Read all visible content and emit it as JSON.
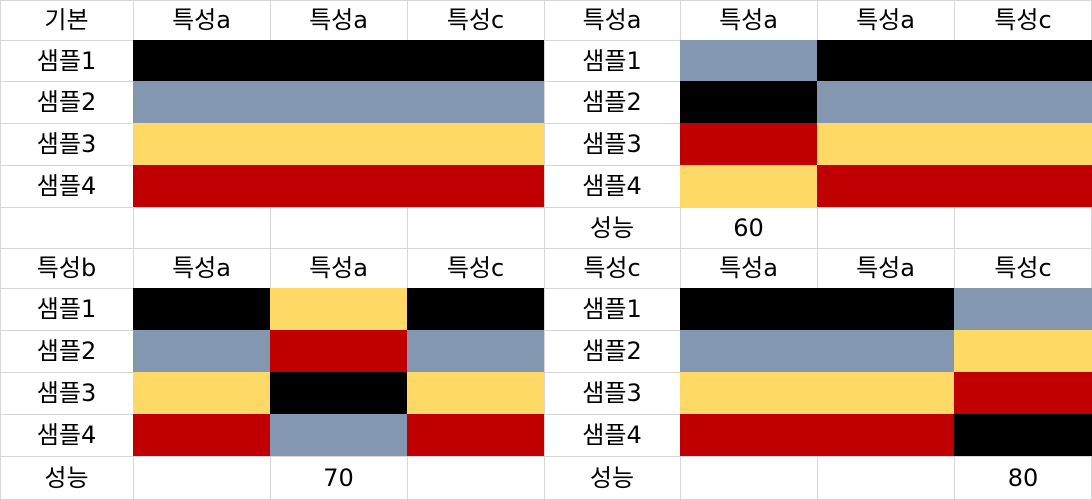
{
  "colors": {
    "black": "#000000",
    "gray": "#8497b0",
    "yellow": "#ffd966",
    "red": "#c00000"
  },
  "tables": [
    {
      "id": "base",
      "title": "기본",
      "headers": [
        "특성a",
        "특성a",
        "특성c"
      ],
      "rows": [
        {
          "label": "샘플1",
          "colors": [
            "black",
            "black",
            "black"
          ]
        },
        {
          "label": "샘플2",
          "colors": [
            "gray",
            "gray",
            "gray"
          ]
        },
        {
          "label": "샘플3",
          "colors": [
            "yellow",
            "yellow",
            "yellow"
          ]
        },
        {
          "label": "샘플4",
          "colors": [
            "red",
            "red",
            "red"
          ]
        }
      ],
      "performance_label": "",
      "performance": [
        "",
        "",
        ""
      ]
    },
    {
      "id": "trait-a",
      "title": "특성a",
      "headers": [
        "특성a",
        "특성a",
        "특성c"
      ],
      "rows": [
        {
          "label": "샘플1",
          "colors": [
            "gray",
            "black",
            "black"
          ]
        },
        {
          "label": "샘플2",
          "colors": [
            "black",
            "gray",
            "gray"
          ]
        },
        {
          "label": "샘플3",
          "colors": [
            "red",
            "yellow",
            "yellow"
          ]
        },
        {
          "label": "샘플4",
          "colors": [
            "yellow",
            "red",
            "red"
          ]
        }
      ],
      "performance_label": "성능",
      "performance": [
        "60",
        "",
        ""
      ]
    },
    {
      "id": "trait-b",
      "title": "특성b",
      "headers": [
        "특성a",
        "특성a",
        "특성c"
      ],
      "rows": [
        {
          "label": "샘플1",
          "colors": [
            "black",
            "yellow",
            "black"
          ]
        },
        {
          "label": "샘플2",
          "colors": [
            "gray",
            "red",
            "gray"
          ]
        },
        {
          "label": "샘플3",
          "colors": [
            "yellow",
            "black",
            "yellow"
          ]
        },
        {
          "label": "샘플4",
          "colors": [
            "red",
            "gray",
            "red"
          ]
        }
      ],
      "performance_label": "성능",
      "performance": [
        "",
        "70",
        ""
      ]
    },
    {
      "id": "trait-c",
      "title": "특성c",
      "headers": [
        "특성a",
        "특성a",
        "특성c"
      ],
      "rows": [
        {
          "label": "샘플1",
          "colors": [
            "black",
            "black",
            "gray"
          ]
        },
        {
          "label": "샘플2",
          "colors": [
            "gray",
            "gray",
            "yellow"
          ]
        },
        {
          "label": "샘플3",
          "colors": [
            "yellow",
            "yellow",
            "red"
          ]
        },
        {
          "label": "샘플4",
          "colors": [
            "red",
            "red",
            "black"
          ]
        }
      ],
      "performance_label": "성능",
      "performance": [
        "",
        "",
        "80"
      ]
    }
  ]
}
